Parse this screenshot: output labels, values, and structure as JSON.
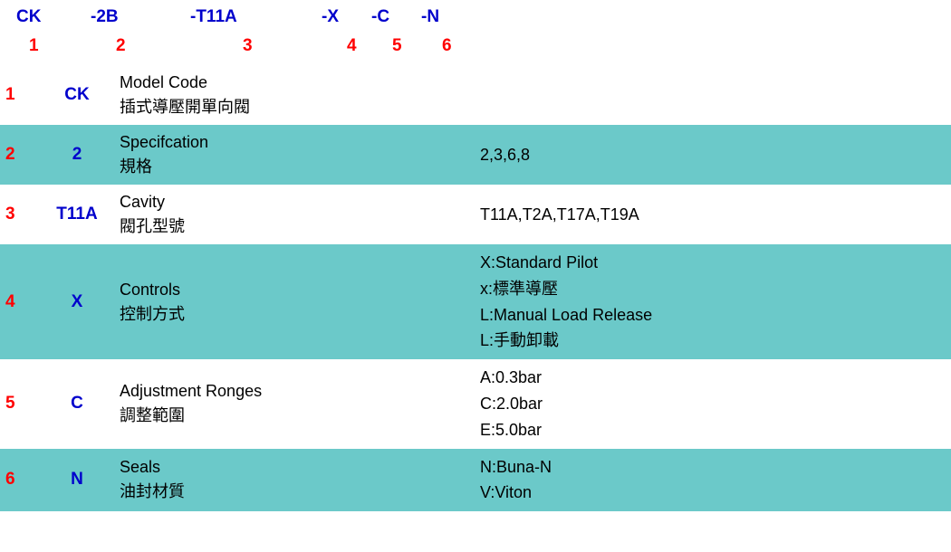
{
  "header": {
    "codes": [
      "CK",
      "-2B",
      "-T11A",
      "-X",
      "-C",
      "-N"
    ],
    "nums": [
      "1",
      "2",
      "3",
      "4",
      "5",
      "6"
    ]
  },
  "rows": [
    {
      "idx": "1",
      "code": "CK",
      "desc_en": "Model Code",
      "desc_zh": "插式導壓開單向閥",
      "values": [],
      "shaded": false
    },
    {
      "idx": "2",
      "code": "2",
      "desc_en": "Specifcation",
      "desc_zh": "規格",
      "values": [
        "2,3,6,8"
      ],
      "shaded": true
    },
    {
      "idx": "3",
      "code": "T11A",
      "desc_en": "Cavity",
      "desc_zh": "閥孔型號",
      "values": [
        "T11A,T2A,T17A,T19A"
      ],
      "shaded": false
    },
    {
      "idx": "4",
      "code": "X",
      "desc_en": "Controls",
      "desc_zh": "控制方式",
      "values": [
        "X:Standard Pilot",
        "x:標準導壓",
        "L:Manual Load Release",
        "L:手動卸載"
      ],
      "shaded": true
    },
    {
      "idx": "5",
      "code": "C",
      "desc_en": "Adjustment Ronges",
      "desc_zh": "調整範圍",
      "values": [
        "A:0.3bar",
        "C:2.0bar",
        "E:5.0bar"
      ],
      "shaded": false
    },
    {
      "idx": "6",
      "code": "N",
      "desc_en": "Seals",
      "desc_zh": "油封材質",
      "values": [
        "N:Buna-N",
        "V:Viton"
      ],
      "shaded": true
    }
  ],
  "colors": {
    "shaded_bg": "#6bc9c9",
    "code_color": "#0000cc",
    "idx_color": "#ff0000",
    "text_color": "#000000"
  }
}
